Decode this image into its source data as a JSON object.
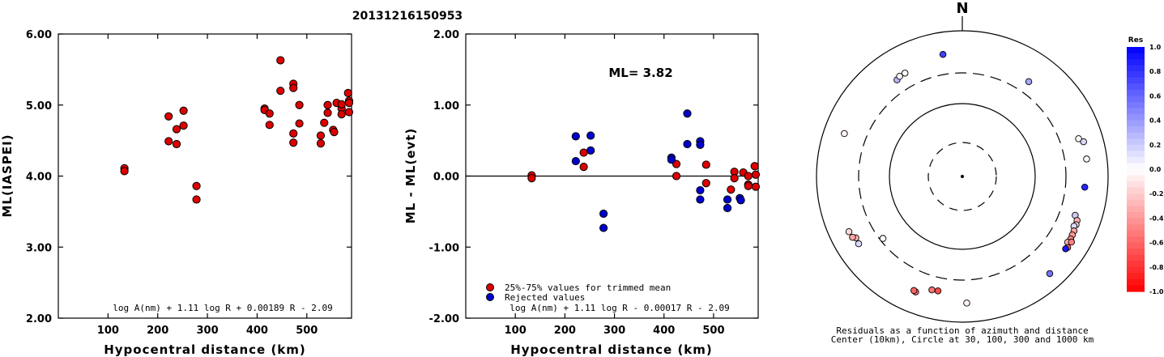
{
  "title": "20131216150953",
  "colors": {
    "accepted": "#dd0000",
    "rejected": "#0000cc",
    "stroke": "#000000"
  },
  "chart_data": [
    {
      "type": "scatter",
      "xlabel": "Hypocentral distance (km)",
      "ylabel": "ML(IASPEI)",
      "xlim": [
        0,
        590
      ],
      "ylim": [
        2.0,
        6.0
      ],
      "x_ticks": [
        "100",
        "200",
        "300",
        "400",
        "500"
      ],
      "y_ticks": [
        "2.00",
        "3.00",
        "4.00",
        "5.00",
        "6.00"
      ],
      "formula": "log A(nm) + 1.11 log R + 0.00189 R - 2.09",
      "series": [
        {
          "values": [
            [
              133,
              4.11
            ],
            [
              133,
              4.07
            ],
            [
              222,
              4.84
            ],
            [
              222,
              4.49
            ],
            [
              238,
              4.66
            ],
            [
              238,
              4.45
            ],
            [
              252,
              4.92
            ],
            [
              252,
              4.71
            ],
            [
              278,
              3.86
            ],
            [
              278,
              3.67
            ],
            [
              415,
              4.95
            ],
            [
              415,
              4.93
            ],
            [
              425,
              4.88
            ],
            [
              425,
              4.72
            ],
            [
              447,
              5.63
            ],
            [
              447,
              5.2
            ],
            [
              473,
              5.3
            ],
            [
              473,
              5.24
            ],
            [
              473,
              4.6
            ],
            [
              473,
              4.47
            ],
            [
              485,
              5.0
            ],
            [
              485,
              4.74
            ],
            [
              528,
              4.57
            ],
            [
              528,
              4.46
            ],
            [
              535,
              4.75
            ],
            [
              542,
              5.0
            ],
            [
              542,
              4.89
            ],
            [
              553,
              4.65
            ],
            [
              555,
              4.62
            ],
            [
              560,
              5.03
            ],
            [
              570,
              4.95
            ],
            [
              570,
              5.01
            ],
            [
              570,
              4.87
            ],
            [
              583,
              5.17
            ],
            [
              585,
              5.06
            ],
            [
              585,
              5.03
            ],
            [
              585,
              4.9
            ]
          ]
        }
      ]
    },
    {
      "type": "scatter",
      "xlabel": "Hypocentral distance (km)",
      "ylabel": "ML - ML(evt)",
      "xlim": [
        0,
        590
      ],
      "ylim": [
        -2.0,
        2.0
      ],
      "x_ticks": [
        "100",
        "200",
        "300",
        "400",
        "500"
      ],
      "y_ticks": [
        "-2.00",
        "-1.00",
        "0.00",
        "1.00",
        "2.00"
      ],
      "ml_label": "ML= 3.82",
      "formula": "log A(nm) + 1.11 log R - 0.00017 R - 2.09",
      "legend": [
        "25%-75% values for trimmed mean",
        "Rejected values"
      ],
      "series": [
        {
          "name": "25%-75% values for trimmed mean",
          "values": [
            [
              133,
              0.01
            ],
            [
              133,
              -0.03
            ],
            [
              238,
              0.33
            ],
            [
              238,
              0.13
            ],
            [
              425,
              0.17
            ],
            [
              425,
              0.0
            ],
            [
              485,
              0.16
            ],
            [
              485,
              -0.1
            ],
            [
              535,
              -0.19
            ],
            [
              542,
              0.06
            ],
            [
              542,
              -0.03
            ],
            [
              560,
              0.05
            ],
            [
              570,
              0.0
            ],
            [
              570,
              -0.12
            ],
            [
              570,
              -0.14
            ],
            [
              583,
              0.14
            ],
            [
              585,
              0.02
            ],
            [
              585,
              -0.15
            ]
          ]
        },
        {
          "name": "Rejected values",
          "values": [
            [
              222,
              0.56
            ],
            [
              222,
              0.21
            ],
            [
              252,
              0.57
            ],
            [
              252,
              0.36
            ],
            [
              278,
              -0.53
            ],
            [
              278,
              -0.73
            ],
            [
              415,
              0.26
            ],
            [
              415,
              0.23
            ],
            [
              447,
              0.88
            ],
            [
              447,
              0.45
            ],
            [
              473,
              0.49
            ],
            [
              473,
              0.44
            ],
            [
              473,
              -0.2
            ],
            [
              473,
              -0.33
            ],
            [
              528,
              -0.33
            ],
            [
              528,
              -0.45
            ],
            [
              553,
              -0.31
            ],
            [
              555,
              -0.34
            ]
          ]
        }
      ]
    },
    {
      "type": "scatter",
      "subtype": "polar",
      "north_label": "N",
      "caption_line1": "Residuals as a function of azimuth and distance",
      "caption_line2": "Center (10km), Circle at 30, 100, 300 and 1000 km",
      "colorbar_title": "Res",
      "colorbar_ticks": [
        "1.0",
        "0.8",
        "0.6",
        "0.4",
        "0.2",
        "0.0",
        "-0.2",
        "-0.4",
        "-0.6",
        "-0.8",
        "-1.0"
      ],
      "points": [
        {
          "azimuth": 351,
          "distance": 530,
          "res": 0.75
        },
        {
          "azimuth": 326,
          "distance": 435,
          "res": 0.28
        },
        {
          "azimuth": 328,
          "distance": 455,
          "res": -0.02
        },
        {
          "azimuth": 331,
          "distance": 455,
          "res": -0.02
        },
        {
          "azimuth": 35,
          "distance": 425,
          "res": 0.35
        },
        {
          "azimuth": 290,
          "distance": 560,
          "res": -0.03
        },
        {
          "azimuth": 72,
          "distance": 510,
          "res": -0.02
        },
        {
          "azimuth": 74,
          "distance": 570,
          "res": 0.16
        },
        {
          "azimuth": 82,
          "distance": 560,
          "res": 0.0
        },
        {
          "azimuth": 95,
          "distance": 520,
          "res": 0.85
        },
        {
          "azimuth": 109,
          "distance": 470,
          "res": 0.2
        },
        {
          "azimuth": 111,
          "distance": 520,
          "res": -0.3
        },
        {
          "azimuth": 113,
          "distance": 530,
          "res": -0.2
        },
        {
          "azimuth": 114,
          "distance": 510,
          "res": 0.15
        },
        {
          "azimuth": 116,
          "distance": 540,
          "res": -0.35
        },
        {
          "azimuth": 118,
          "distance": 545,
          "res": -0.4
        },
        {
          "azimuth": 120,
          "distance": 555,
          "res": -0.45
        },
        {
          "azimuth": 122,
          "distance": 540,
          "res": -0.3
        },
        {
          "azimuth": 121,
          "distance": 590,
          "res": -0.5
        },
        {
          "azimuth": 124,
          "distance": 585,
          "res": -0.6
        },
        {
          "azimuth": 125,
          "distance": 570,
          "res": 0.9
        },
        {
          "azimuth": 178,
          "distance": 580,
          "res": -0.05
        },
        {
          "azimuth": 192,
          "distance": 440,
          "res": -0.7
        },
        {
          "azimuth": 195,
          "distance": 445,
          "res": -0.55
        },
        {
          "azimuth": 202,
          "distance": 545,
          "res": -0.55
        },
        {
          "azimuth": 203,
          "distance": 535,
          "res": -0.6
        },
        {
          "azimuth": 232,
          "distance": 270,
          "res": 0.0
        },
        {
          "azimuth": 237,
          "distance": 530,
          "res": 0.15
        },
        {
          "azimuth": 240,
          "distance": 520,
          "res": -0.3
        },
        {
          "azimuth": 241,
          "distance": 560,
          "res": -0.35
        },
        {
          "azimuth": 244,
          "distance": 570,
          "res": -0.15
        },
        {
          "azimuth": 138,
          "distance": 650,
          "res": 0.55
        }
      ]
    }
  ]
}
